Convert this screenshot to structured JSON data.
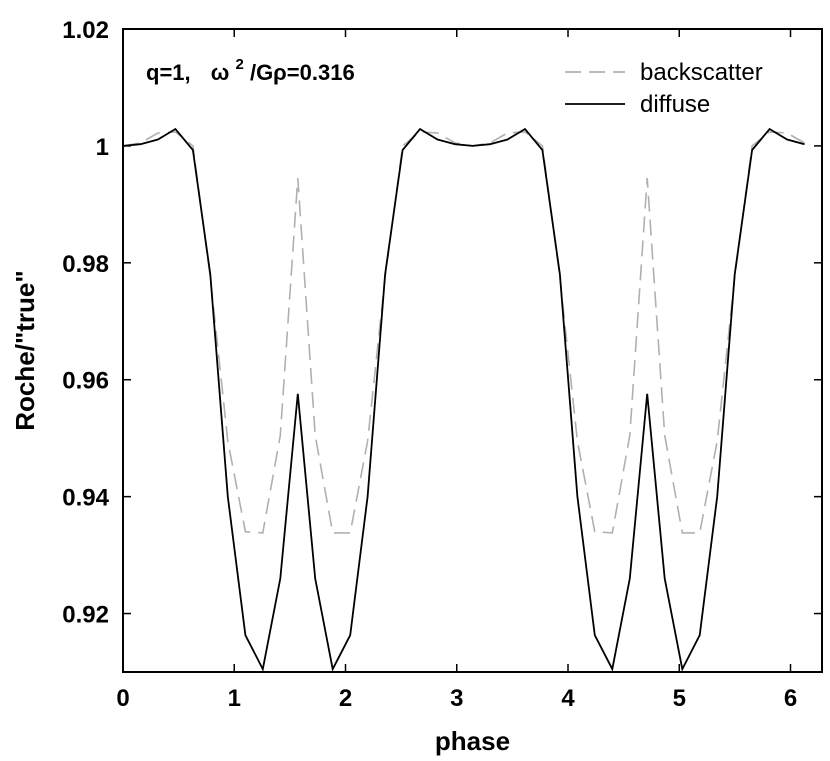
{
  "chart_data": {
    "type": "line",
    "xlabel": "phase",
    "ylabel": "Roche/\"true\"",
    "xlim": [
      0,
      6.283
    ],
    "ylim": [
      0.91,
      1.02
    ],
    "xticks": [
      "0",
      "1",
      "2",
      "3",
      "4",
      "5",
      "6"
    ],
    "yticks": [
      "0.92",
      "0.94",
      "0.96",
      "0.98",
      "1",
      "1.02"
    ],
    "grid": false,
    "legend_placement": "top-right",
    "annotation": {
      "part1": "q=1,",
      "omega": "ω",
      "sup": "2",
      "part2": "/Gρ=0.316"
    },
    "series": [
      {
        "name": "backscatter",
        "color": "#b0b0b0",
        "style": "dashed",
        "x": [
          0,
          0.157,
          0.314,
          0.471,
          0.628,
          0.785,
          0.942,
          1.1,
          1.257,
          1.414,
          1.571,
          1.728,
          1.885,
          2.042,
          2.199,
          2.356,
          2.513,
          2.67,
          2.827,
          2.985,
          3.142,
          3.299,
          3.456,
          3.613,
          3.77,
          3.927,
          4.084,
          4.241,
          4.398,
          4.555,
          4.712,
          4.869,
          5.027,
          5.184,
          5.341,
          5.498,
          5.655,
          5.812,
          5.969,
          6.126
        ],
        "y": [
          1.0,
          1.0005,
          1.0022,
          1.0024,
          1.0,
          0.9775,
          0.9495,
          0.934,
          0.9338,
          0.9505,
          0.9945,
          0.9505,
          0.9338,
          0.9338,
          0.9495,
          0.9775,
          1.0,
          1.0024,
          1.0022,
          1.0005,
          1.0,
          1.0005,
          1.0022,
          1.0024,
          1.0,
          0.9775,
          0.9495,
          0.934,
          0.9338,
          0.9505,
          0.9945,
          0.9505,
          0.9338,
          0.9338,
          0.9495,
          0.9775,
          1.0,
          1.0024,
          1.0022,
          1.0005
        ]
      },
      {
        "name": "diffuse",
        "color": "#000000",
        "style": "solid",
        "x": [
          0,
          0.157,
          0.314,
          0.471,
          0.628,
          0.785,
          0.942,
          1.1,
          1.257,
          1.414,
          1.571,
          1.728,
          1.885,
          2.042,
          2.199,
          2.356,
          2.513,
          2.67,
          2.827,
          2.985,
          3.142,
          3.299,
          3.456,
          3.613,
          3.77,
          3.927,
          4.084,
          4.241,
          4.398,
          4.555,
          4.712,
          4.869,
          5.027,
          5.184,
          5.341,
          5.498,
          5.655,
          5.812,
          5.969,
          6.126
        ],
        "y": [
          1.0,
          1.0003,
          1.0011,
          1.0029,
          0.9993,
          0.978,
          0.94,
          0.9163,
          0.9105,
          0.926,
          0.9576,
          0.926,
          0.9105,
          0.9163,
          0.94,
          0.978,
          0.9993,
          1.0029,
          1.0011,
          1.0003,
          1.0,
          1.0003,
          1.0011,
          1.0029,
          0.9993,
          0.978,
          0.94,
          0.9163,
          0.9105,
          0.926,
          0.9576,
          0.926,
          0.9105,
          0.9163,
          0.94,
          0.978,
          0.9993,
          1.0029,
          1.0011,
          1.0003
        ]
      }
    ]
  }
}
